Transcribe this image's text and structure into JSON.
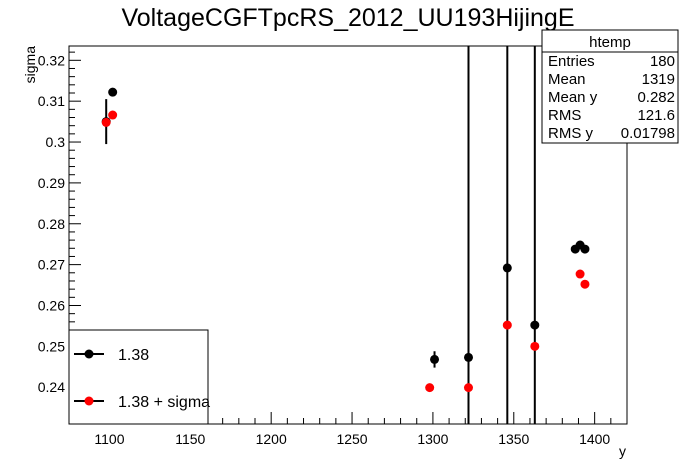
{
  "chart_data": {
    "type": "scatter",
    "title": "VoltageCGFTpcRS_2012_UU193HijingE",
    "xlabel": "y",
    "ylabel": "sigma",
    "xlim": [
      1075,
      1420
    ],
    "ylim": [
      0.231,
      0.3235
    ],
    "grid": false,
    "x_ticks": [
      1100,
      1150,
      1200,
      1250,
      1300,
      1350,
      1400
    ],
    "y_ticks": [
      0.24,
      0.25,
      0.26,
      0.27,
      0.28,
      0.29,
      0.3,
      0.31,
      0.32
    ],
    "y_tick_labels": [
      "0.24",
      "0.25",
      "0.26",
      "0.27",
      "0.28",
      "0.29",
      "0.3",
      "0.31",
      "0.32"
    ],
    "series": [
      {
        "name": "1.38",
        "color": "#000000",
        "points": [
          {
            "x": 1098,
            "y": 0.305,
            "err": 0.0055
          },
          {
            "x": 1102,
            "y": 0.3122,
            "err": 0.0
          },
          {
            "x": 1301,
            "y": 0.2468,
            "err": 0.002
          },
          {
            "x": 1322,
            "y": 0.2473,
            "err": 0.08
          },
          {
            "x": 1346,
            "y": 0.2692,
            "err": 0.08
          },
          {
            "x": 1363,
            "y": 0.2552,
            "err": 0.08
          },
          {
            "x": 1388,
            "y": 0.2738,
            "err": 0.0
          },
          {
            "x": 1391,
            "y": 0.2748,
            "err": 0.0
          },
          {
            "x": 1394,
            "y": 0.2738,
            "err": 0.0
          }
        ]
      },
      {
        "name": "1.38 + sigma",
        "color": "#ff0000",
        "points": [
          {
            "x": 1098,
            "y": 0.3048
          },
          {
            "x": 1102,
            "y": 0.3066
          },
          {
            "x": 1298,
            "y": 0.2399
          },
          {
            "x": 1322,
            "y": 0.2399
          },
          {
            "x": 1346,
            "y": 0.2552
          },
          {
            "x": 1363,
            "y": 0.25
          },
          {
            "x": 1391,
            "y": 0.2677
          },
          {
            "x": 1394,
            "y": 0.2652
          }
        ]
      }
    ],
    "legend_position": "bottom-left"
  },
  "stats_box": {
    "title": "htemp",
    "rows": [
      {
        "label": "Entries",
        "value": "180"
      },
      {
        "label": "Mean",
        "value": "1319"
      },
      {
        "label": "Mean y",
        "value": "0.282"
      },
      {
        "label": "RMS",
        "value": "121.6"
      },
      {
        "label": "RMS y",
        "value": "0.01798"
      }
    ]
  }
}
